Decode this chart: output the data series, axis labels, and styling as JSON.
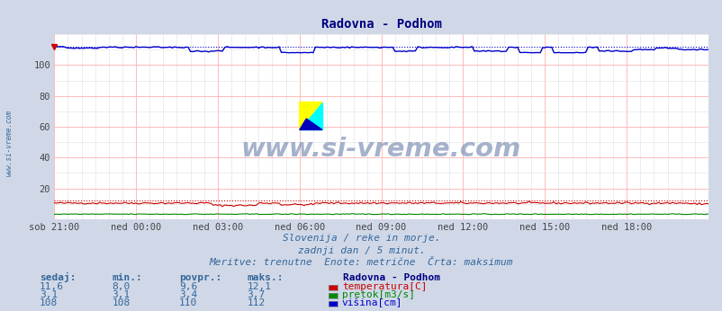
{
  "title": "Radovna - Podhom",
  "title_color": "#000080",
  "bg_color": "#d0d8e8",
  "plot_bg_color": "#ffffff",
  "grid_color_major": "#ffb0b0",
  "grid_color_minor": "#e0e0e0",
  "xlim": [
    0,
    288
  ],
  "ylim": [
    0,
    120
  ],
  "yticks": [
    20,
    40,
    60,
    80,
    100
  ],
  "xtick_labels": [
    "sob 21:00",
    "ned 00:00",
    "ned 03:00",
    "ned 06:00",
    "ned 09:00",
    "ned 12:00",
    "ned 15:00",
    "ned 18:00"
  ],
  "xtick_positions": [
    0,
    36,
    72,
    108,
    144,
    180,
    216,
    252
  ],
  "temp_color": "#cc0000",
  "flow_color": "#008800",
  "height_color": "#0000cc",
  "temp_max_val": 12.1,
  "flow_max_val": 3.7,
  "height_max_val": 112,
  "watermark": "www.si-vreme.com",
  "watermark_color": "#8899bb",
  "subtitle1": "Slovenija / reke in morje.",
  "subtitle2": "zadnji dan / 5 minut.",
  "subtitle3": "Meritve: trenutne  Enote: metrične  Črta: maksimum",
  "subtitle_color": "#336699",
  "legend_title": "Radovna - Podhom",
  "legend_title_color": "#000080",
  "legend_items": [
    {
      "label": "temperatura[C]",
      "color": "#cc0000"
    },
    {
      "label": "pretok[m3/s]",
      "color": "#008800"
    },
    {
      "label": "višina[cm]",
      "color": "#0000cc"
    }
  ],
  "table_headers": [
    "sedaj:",
    "min.:",
    "povpr.:",
    "maks.:"
  ],
  "table_rows": [
    [
      "11,6",
      "8,0",
      "9,6",
      "12,1"
    ],
    [
      "3,1",
      "3,1",
      "3,4",
      "3,7"
    ],
    [
      "108",
      "108",
      "110",
      "112"
    ]
  ],
  "table_color": "#336699",
  "left_label": "www.si-vreme.com",
  "left_label_color": "#336699"
}
